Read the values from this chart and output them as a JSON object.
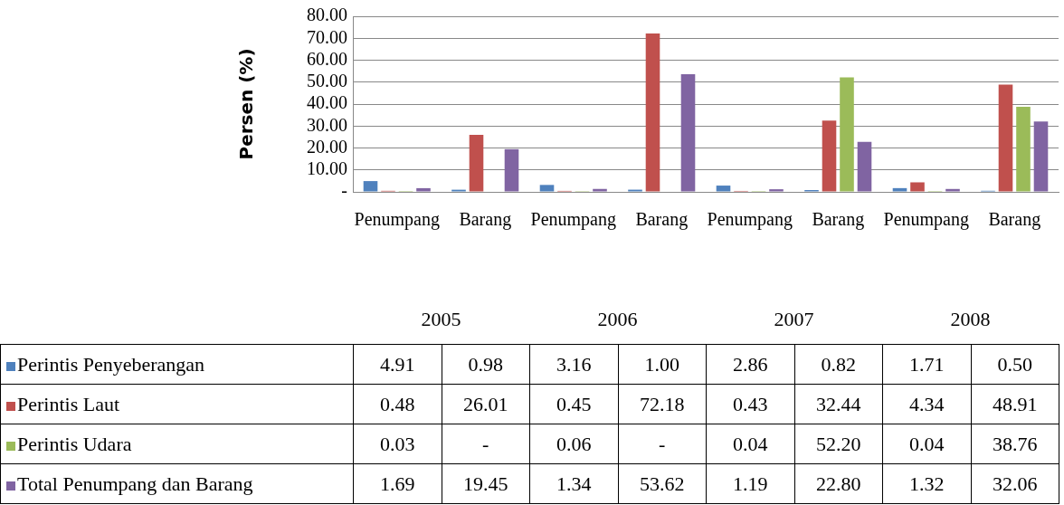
{
  "chart_data": {
    "type": "bar",
    "ylabel": "Persen (%)",
    "categories": [
      "Penumpang",
      "Barang",
      "Penumpang",
      "Barang",
      "Penumpang",
      "Barang",
      "Penumpang",
      "Barang"
    ],
    "annotations": [
      "2005",
      "2006",
      "2007",
      "2008"
    ],
    "series": [
      {
        "name": "Perintis Penyeberangan",
        "color": "#4f81bd",
        "values": [
          4.91,
          0.98,
          3.16,
          1.0,
          2.86,
          0.82,
          1.71,
          0.5
        ],
        "value_labels": [
          "4.91",
          "0.98",
          "3.16",
          "1.00",
          "2.86",
          "0.82",
          "1.71",
          "0.50"
        ]
      },
      {
        "name": "Perintis Laut",
        "color": "#c0504d",
        "values": [
          0.48,
          26.01,
          0.45,
          72.18,
          0.43,
          32.44,
          4.34,
          48.91
        ],
        "value_labels": [
          "0.48",
          "26.01",
          "0.45",
          "72.18",
          "0.43",
          "32.44",
          "4.34",
          "48.91"
        ]
      },
      {
        "name": "Perintis Udara",
        "color": "#9bbb59",
        "values": [
          0.03,
          null,
          0.06,
          null,
          0.04,
          52.2,
          0.04,
          38.76
        ],
        "value_labels": [
          "0.03",
          "-",
          "0.06",
          "-",
          "0.04",
          "52.20",
          "0.04",
          "38.76"
        ]
      },
      {
        "name": "Total Penumpang dan Barang",
        "color": "#8064a2",
        "values": [
          1.69,
          19.45,
          1.34,
          53.62,
          1.19,
          22.8,
          1.32,
          32.06
        ],
        "value_labels": [
          "1.69",
          "19.45",
          "1.34",
          "53.62",
          "1.19",
          "22.80",
          "1.32",
          "32.06"
        ]
      }
    ],
    "ylim": [
      0,
      80
    ],
    "yticks": [
      {
        "value": 0,
        "label": "-"
      },
      {
        "value": 10,
        "label": "10.00"
      },
      {
        "value": 20,
        "label": "20.00"
      },
      {
        "value": 30,
        "label": "30.00"
      },
      {
        "value": 40,
        "label": "40.00"
      },
      {
        "value": 50,
        "label": "50.00"
      },
      {
        "value": 60,
        "label": "60.00"
      },
      {
        "value": 70,
        "label": "70.00"
      },
      {
        "value": 80,
        "label": "80.00"
      }
    ],
    "grid": "y",
    "legend": "bottom left"
  }
}
